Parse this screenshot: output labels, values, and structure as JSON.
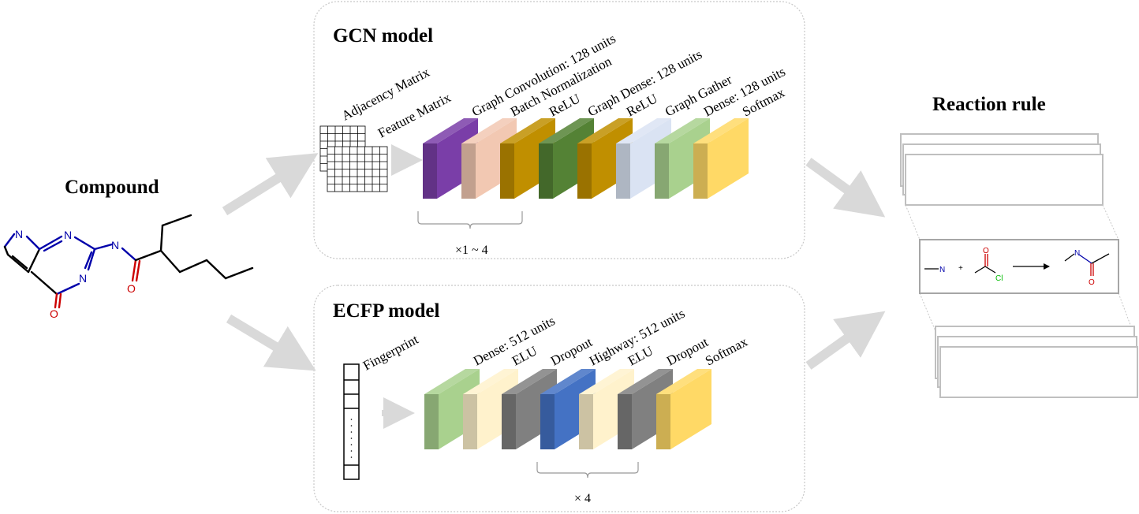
{
  "compound": {
    "title": "Compound",
    "atoms": {
      "n": "N",
      "o": "O"
    }
  },
  "gcn": {
    "title": "GCN model",
    "inputs": [
      "Adjacency Matrix",
      "Feature Matrix"
    ],
    "layers": [
      {
        "label": "Graph Convolution: 128 units",
        "color": "#7a3ea8"
      },
      {
        "label": "Batch Normalization",
        "color": "#f2c8b2"
      },
      {
        "label": "ReLU",
        "color": "#c08f00"
      },
      {
        "label": "Graph Dense: 128 units",
        "color": "#548235"
      },
      {
        "label": "ReLU",
        "color": "#c08f00"
      },
      {
        "label": "Graph Gather",
        "color": "#dae3f3"
      },
      {
        "label": "Dense: 128 units",
        "color": "#a9d18e"
      },
      {
        "label": "Softmax",
        "color": "#ffd966"
      }
    ],
    "repeat": "×1 ~ 4"
  },
  "ecfp": {
    "title": "ECFP model",
    "input": "Fingerprint",
    "layers": [
      {
        "label": "Dense: 512 units",
        "color": "#a9d18e"
      },
      {
        "label": "ELU",
        "color": "#fff2cc"
      },
      {
        "label": "Dropout",
        "color": "#808080"
      },
      {
        "label": "Highway: 512 units",
        "color": "#4472c4"
      },
      {
        "label": "ELU",
        "color": "#fff2cc"
      },
      {
        "label": "Dropout",
        "color": "#808080"
      },
      {
        "label": "Softmax",
        "color": "#ffd966"
      }
    ],
    "repeat": "× 4"
  },
  "reaction": {
    "title": "Reaction rule",
    "atoms": {
      "n": "N",
      "o": "O",
      "cl": "Cl",
      "plus": "+"
    }
  },
  "colors": {
    "nitrogen": "#0000aa",
    "oxygen": "#cc0000",
    "chlorine": "#00bb00",
    "arrow": "#d9d9d9"
  }
}
